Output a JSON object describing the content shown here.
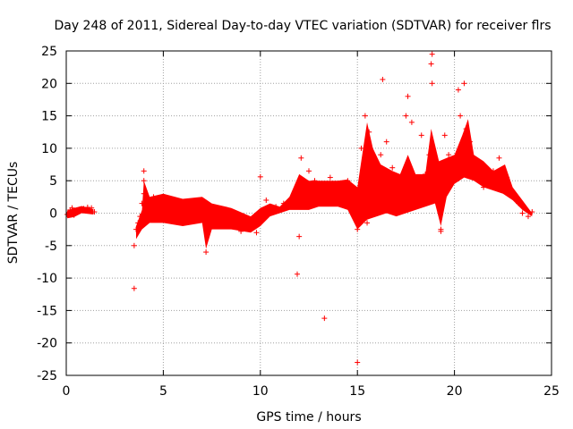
{
  "chart_data": {
    "type": "scatter",
    "title": "Day 248 of 2011, Sidereal Day-to-day VTEC variation (SDTVAR) for receiver flrs",
    "xlabel": "GPS time / hours",
    "ylabel": "SDTVAR / TECUs",
    "xlim": [
      0,
      25
    ],
    "ylim": [
      -25,
      25
    ],
    "xticks": [
      0,
      5,
      10,
      15,
      20,
      25
    ],
    "yticks": [
      -25,
      -20,
      -15,
      -10,
      -5,
      0,
      5,
      10,
      15,
      20,
      25
    ],
    "grid": true,
    "marker": "+",
    "color": "#ff0000",
    "series": [
      {
        "name": "SDTVAR",
        "x": [
          0.05,
          0.2,
          0.3,
          0.4,
          0.55,
          0.7,
          0.9,
          1.1,
          1.3,
          1.45,
          3.5,
          3.6,
          3.7,
          3.8,
          3.9,
          4.0,
          4.0,
          4.1,
          4.2,
          4.5,
          5.0,
          5.5,
          6.0,
          6.5,
          6.8,
          7.0,
          7.2,
          7.4,
          7.6,
          8.0,
          8.5,
          9.0,
          9.5,
          9.8,
          10.0,
          10.1,
          10.3,
          10.5,
          10.8,
          11.2,
          11.5,
          11.8,
          12.0,
          12.1,
          12.3,
          12.5,
          12.8,
          13.0,
          13.3,
          13.6,
          14.0,
          14.5,
          14.8,
          15.0,
          15.1,
          15.2,
          15.4,
          15.5,
          15.6,
          15.8,
          16.0,
          16.2,
          16.5,
          16.8,
          17.0,
          17.3,
          17.5,
          17.6,
          17.8,
          18.0,
          18.3,
          18.5,
          18.7,
          18.8,
          18.85,
          19.0,
          19.2,
          19.3,
          19.5,
          19.7,
          20.0,
          20.2,
          20.3,
          20.5,
          20.6,
          20.8,
          21.0,
          21.3,
          21.5,
          21.8,
          22.0,
          22.3,
          22.5,
          22.7,
          23.0,
          23.3,
          23.5,
          23.8,
          24.0,
          3.5,
          4.0,
          10.0,
          11.9,
          12.0,
          13.3,
          15.0,
          16.3,
          18.85,
          19.3,
          20.2
        ],
        "y": [
          -0.2,
          0.5,
          0.8,
          -0.3,
          0.2,
          0.6,
          0.7,
          0.9,
          0.8,
          0.2,
          -5.0,
          -2.5,
          -1.5,
          -0.5,
          1.5,
          5.0,
          3.0,
          -0.8,
          1.0,
          2.5,
          1.5,
          0.5,
          -0.5,
          1.5,
          2.0,
          -1.0,
          -6.0,
          -1.5,
          -0.5,
          -1.5,
          -2.0,
          -2.8,
          -2.5,
          -3.0,
          -1.5,
          0.5,
          2.0,
          0.5,
          1.0,
          1.5,
          2.0,
          2.5,
          5.0,
          8.5,
          4.5,
          6.5,
          5.0,
          3.0,
          4.0,
          5.5,
          4.5,
          5.0,
          4.0,
          -2.5,
          2.0,
          10.0,
          15.0,
          -1.5,
          12.5,
          6.0,
          1.5,
          9.0,
          11.0,
          7.0,
          3.0,
          5.0,
          15.0,
          18.0,
          14.0,
          1.0,
          12.0,
          6.0,
          9.0,
          23.0,
          20.0,
          7.5,
          4.0,
          -2.5,
          12.0,
          9.0,
          8.0,
          19.0,
          15.0,
          20.0,
          13.0,
          11.0,
          7.5,
          5.5,
          4.0,
          5.5,
          6.5,
          8.5,
          4.0,
          5.5,
          2.5,
          1.5,
          0.0,
          -0.5,
          0.2,
          -11.6,
          6.5,
          5.6,
          -9.4,
          -3.6,
          -16.2,
          -23.0,
          20.6,
          24.5,
          -2.8,
          5.3
        ]
      }
    ]
  }
}
